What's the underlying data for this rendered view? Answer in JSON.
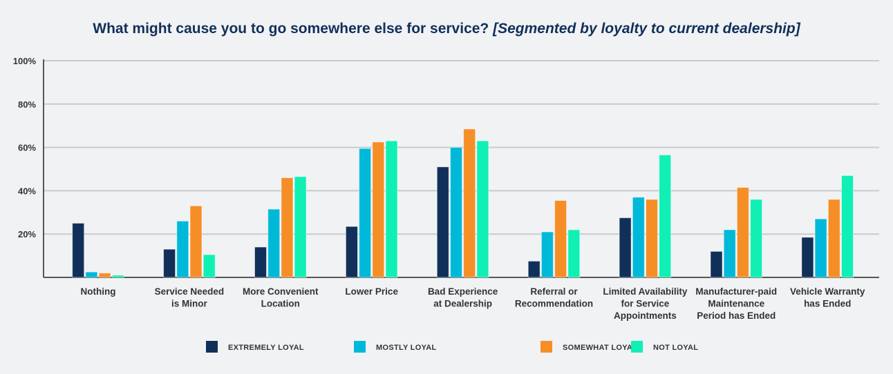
{
  "chart_data": {
    "type": "bar",
    "title": "What might cause you to go somewhere else for service?",
    "subtitle": "[Segmented by loyalty to current dealership]",
    "xlabel": "",
    "ylabel": "",
    "ylim": [
      0,
      100
    ],
    "yticks": [
      "20%",
      "40%",
      "60%",
      "80%",
      "100%"
    ],
    "grid": true,
    "legend_position": "bottom",
    "categories": [
      [
        "Nothing"
      ],
      [
        "Service Needed",
        "is Minor"
      ],
      [
        "More Convenient",
        "Location"
      ],
      [
        "Lower Price"
      ],
      [
        "Bad Experience",
        "at Dealership"
      ],
      [
        "Referral or",
        "Recommendation"
      ],
      [
        "Limited Availability",
        "for Service",
        "Appointments"
      ],
      [
        "Manufacturer-paid",
        "Maintenance",
        "Period has Ended"
      ],
      [
        "Vehicle Warranty",
        "has Ended"
      ]
    ],
    "series": [
      {
        "name": "EXTREMELY LOYAL",
        "color": "#10305a",
        "values": [
          25,
          13,
          14,
          23.5,
          51,
          7.5,
          27.5,
          12,
          18.5
        ]
      },
      {
        "name": "MOSTLY LOYAL",
        "color": "#00b9d9",
        "values": [
          2.5,
          26,
          31.5,
          59.5,
          60,
          21,
          37,
          22,
          27
        ]
      },
      {
        "name": "SOMEWHAT LOYAL",
        "color": "#f68e28",
        "values": [
          2,
          33,
          46,
          62.5,
          68.5,
          35.5,
          36,
          41.5,
          36
        ]
      },
      {
        "name": "NOT LOYAL",
        "color": "#10f0b4",
        "values": [
          1,
          10.5,
          46.5,
          63,
          63,
          22,
          56.5,
          36,
          47
        ]
      }
    ]
  }
}
